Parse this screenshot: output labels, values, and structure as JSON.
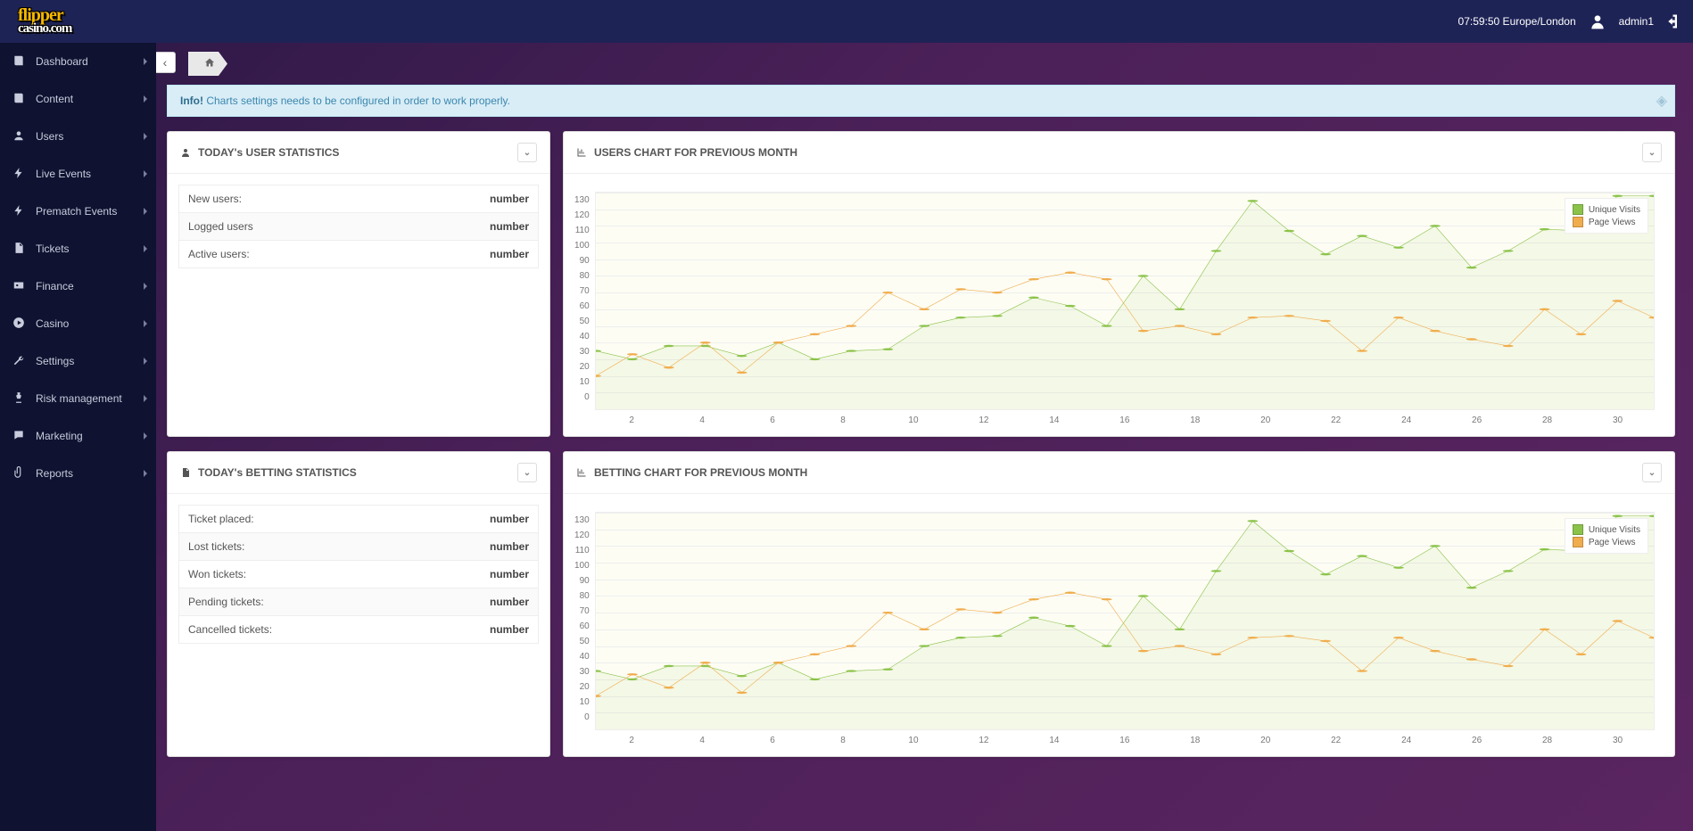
{
  "header": {
    "logo_line1": "flipper",
    "logo_line2": "casino.com",
    "clock": "07:59:50 Europe/London",
    "username": "admin1"
  },
  "sidebar": {
    "items": [
      {
        "icon": "book",
        "label": "Dashboard"
      },
      {
        "icon": "book",
        "label": "Content"
      },
      {
        "icon": "user",
        "label": "Users"
      },
      {
        "icon": "bolt",
        "label": "Live Events"
      },
      {
        "icon": "bolt",
        "label": "Prematch Events"
      },
      {
        "icon": "file",
        "label": "Tickets"
      },
      {
        "icon": "money",
        "label": "Finance"
      },
      {
        "icon": "play",
        "label": "Casino"
      },
      {
        "icon": "wrench",
        "label": "Settings"
      },
      {
        "icon": "chess",
        "label": "Risk management"
      },
      {
        "icon": "chat",
        "label": "Marketing"
      },
      {
        "icon": "clip",
        "label": "Reports"
      }
    ]
  },
  "alert": {
    "badge": "Info!",
    "text": "Charts settings needs to be configured in order to work properly."
  },
  "panels": {
    "user_stats": {
      "title": "TODAY's USER STATISTICS",
      "rows": [
        {
          "label": "New users:",
          "value": "number"
        },
        {
          "label": "Logged users",
          "value": "number"
        },
        {
          "label": "Active users:",
          "value": "number"
        }
      ]
    },
    "betting_stats": {
      "title": "TODAY's BETTING STATISTICS",
      "rows": [
        {
          "label": "Ticket placed:",
          "value": "number"
        },
        {
          "label": "Lost tickets:",
          "value": "number"
        },
        {
          "label": "Won tickets:",
          "value": "number"
        },
        {
          "label": "Pending tickets:",
          "value": "number"
        },
        {
          "label": "Cancelled tickets:",
          "value": "number"
        }
      ]
    },
    "users_chart": {
      "title": "USERS CHART FOR PREVIOUS MONTH"
    },
    "betting_chart": {
      "title": "BETTING CHART FOR PREVIOUS MONTH"
    }
  },
  "chart": {
    "type": "line",
    "legend": [
      {
        "label": "Unique Visits",
        "color": "#8bc34a"
      },
      {
        "label": "Page Views",
        "color": "#f0ad4e"
      }
    ],
    "x_categories": [
      1,
      2,
      3,
      4,
      5,
      6,
      7,
      8,
      9,
      10,
      11,
      12,
      13,
      14,
      15,
      16,
      17,
      18,
      19,
      20,
      21,
      22,
      23,
      24,
      25,
      26,
      27,
      28,
      29,
      30
    ],
    "x_tick_labels": [
      2,
      4,
      6,
      8,
      10,
      12,
      14,
      16,
      18,
      20,
      22,
      24,
      26,
      28,
      30
    ],
    "ylim": [
      0,
      130
    ],
    "ytick_step": 10,
    "background_color": "#fdfdf4",
    "grid_color": "#eeeeee",
    "line_width": 2,
    "marker_size": 3,
    "series": {
      "unique_visits": {
        "color": "#8bc34a",
        "values": [
          35,
          30,
          38,
          38,
          32,
          40,
          30,
          35,
          36,
          50,
          55,
          56,
          67,
          62,
          50,
          80,
          60,
          95,
          125,
          107,
          93,
          104,
          97,
          110,
          85,
          95,
          108,
          107,
          128,
          128
        ]
      },
      "page_views": {
        "color": "#f0ad4e",
        "values": [
          20,
          33,
          25,
          40,
          22,
          40,
          45,
          50,
          70,
          60,
          72,
          70,
          78,
          82,
          78,
          47,
          50,
          45,
          55,
          56,
          53,
          35,
          55,
          47,
          42,
          38,
          60,
          45,
          65,
          55
        ]
      }
    }
  }
}
